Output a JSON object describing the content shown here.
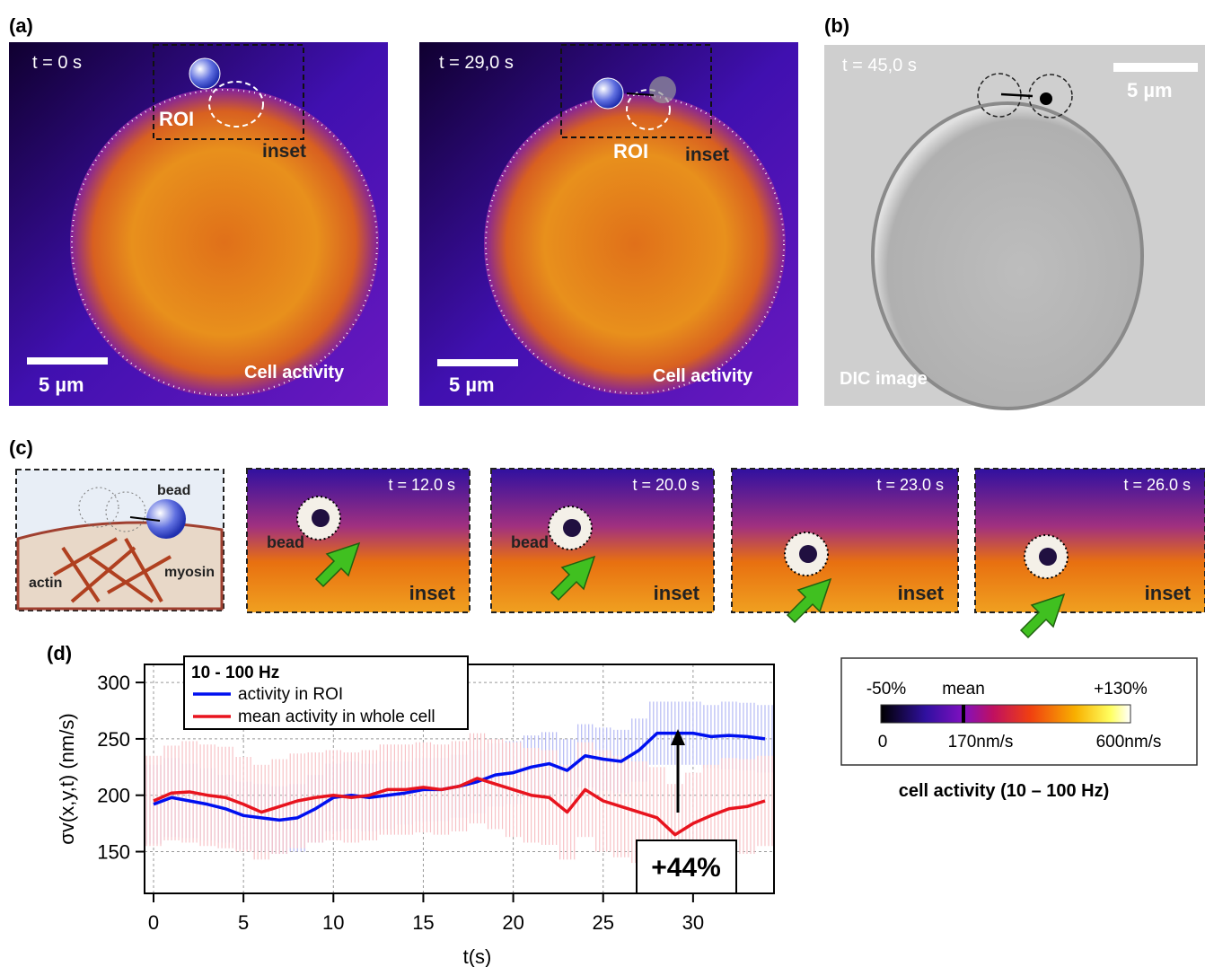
{
  "panels": {
    "a": {
      "label": "(a)",
      "images": [
        {
          "time": "t = 0 s",
          "roi": "ROI",
          "inset": "inset",
          "scale": "5 µm",
          "caption": "Cell activity"
        },
        {
          "time": "t = 29,0 s",
          "roi": "ROI",
          "inset": "inset",
          "scale": "5 µm",
          "caption": "Cell activity"
        }
      ]
    },
    "b": {
      "label": "(b)",
      "time": "t = 45,0 s",
      "scale": "5 µm",
      "caption": "DIC image"
    },
    "c": {
      "label": "(c)",
      "schematic": {
        "bead": "bead",
        "actin": "actin",
        "myosin": "myosin"
      },
      "insets": [
        {
          "time": "t = 12.0 s",
          "bead": "bead",
          "caption": "inset"
        },
        {
          "time": "t = 20.0 s",
          "bead": "bead",
          "caption": "inset"
        },
        {
          "time": "t = 23.0 s",
          "caption": "inset"
        },
        {
          "time": "t = 26.0 s",
          "caption": "inset"
        }
      ]
    },
    "d": {
      "label": "(d)"
    },
    "colorbar": {
      "top_labels": [
        "-50%",
        "mean",
        "+130%"
      ],
      "bottom_labels": [
        "0",
        "170nm/s",
        "600nm/s"
      ],
      "caption": "cell activity (10 – 100 Hz)"
    }
  },
  "chart_data": {
    "type": "line",
    "x_label": "t(s)",
    "y_label": "σv(x,y,t) (nm/s)",
    "legend_title": "10 - 100 Hz",
    "x": [
      0,
      1,
      2,
      3,
      4,
      5,
      6,
      7,
      8,
      9,
      10,
      11,
      12,
      13,
      14,
      15,
      16,
      17,
      18,
      19,
      20,
      21,
      22,
      23,
      24,
      25,
      26,
      27,
      28,
      29,
      30,
      31,
      32,
      33,
      34
    ],
    "series": [
      {
        "name": "activity in ROI",
        "color": "#0010f0",
        "error_color": "#b4b8f4",
        "values": [
          192,
          198,
          195,
          192,
          188,
          182,
          180,
          178,
          180,
          188,
          198,
          200,
          198,
          200,
          202,
          205,
          205,
          208,
          212,
          218,
          220,
          225,
          228,
          222,
          235,
          232,
          230,
          240,
          255,
          255,
          255,
          252,
          253,
          252,
          250
        ],
        "errors": [
          35,
          35,
          33,
          32,
          30,
          30,
          30,
          30,
          30,
          30,
          30,
          30,
          30,
          30,
          28,
          28,
          28,
          28,
          28,
          28,
          28,
          28,
          28,
          28,
          28,
          28,
          28,
          28,
          28,
          28,
          28,
          28,
          30,
          30,
          30
        ]
      },
      {
        "name": "mean activity in whole cell",
        "color": "#e8141e",
        "error_color": "#f7c2c6",
        "values": [
          195,
          202,
          203,
          200,
          198,
          192,
          185,
          190,
          195,
          198,
          200,
          198,
          200,
          205,
          205,
          207,
          205,
          208,
          215,
          210,
          205,
          200,
          198,
          185,
          205,
          195,
          190,
          185,
          180,
          165,
          175,
          182,
          188,
          190,
          195
        ],
        "errors": [
          40,
          42,
          45,
          45,
          45,
          42,
          42,
          42,
          42,
          40,
          40,
          40,
          40,
          40,
          40,
          40,
          40,
          40,
          40,
          40,
          42,
          42,
          42,
          42,
          42,
          45,
          45,
          45,
          45,
          45,
          45,
          45,
          45,
          42,
          40
        ]
      }
    ],
    "xlim": [
      -0.5,
      34.5
    ],
    "ylim": [
      113,
      316
    ],
    "xticks": [
      0,
      5,
      10,
      15,
      20,
      25,
      30
    ],
    "yticks": [
      150,
      200,
      250,
      300
    ],
    "grid": true,
    "legend": "upper left",
    "annotations": [
      "+44%"
    ]
  }
}
